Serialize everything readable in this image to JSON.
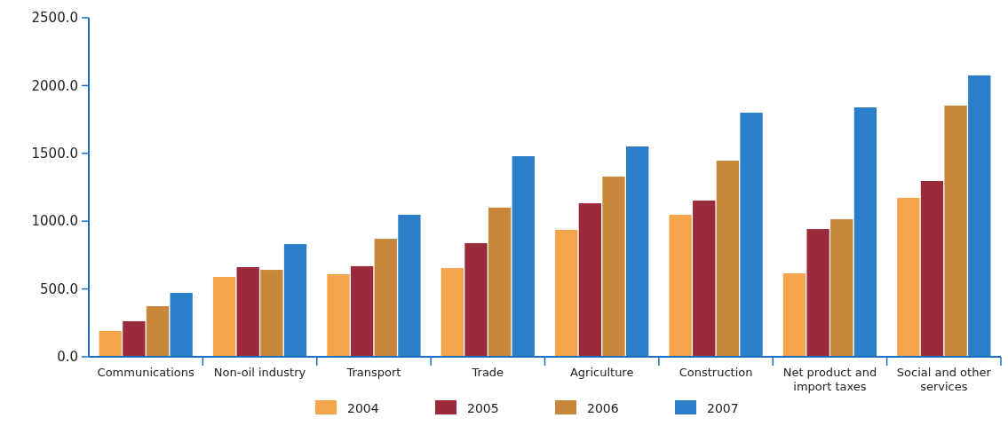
{
  "chart_data": {
    "type": "bar",
    "categories": [
      "Communications",
      "Non-oil industry",
      "Transport",
      "Trade",
      "Agriculture",
      "Construction",
      "Net product and import taxes",
      "Social and other services"
    ],
    "series": [
      {
        "name": "2004",
        "color": "#f5a44a",
        "values": [
          190,
          589,
          609,
          654,
          936,
          1047,
          615,
          1172
        ]
      },
      {
        "name": "2005",
        "color": "#9b2a3a",
        "values": [
          262,
          661,
          668,
          838,
          1132,
          1152,
          942,
          1296
        ]
      },
      {
        "name": "2006",
        "color": "#c8873a",
        "values": [
          373,
          641,
          870,
          1100,
          1329,
          1446,
          1014,
          1852
        ]
      },
      {
        "name": "2007",
        "color": "#2b7fc8",
        "values": [
          471,
          831,
          1047,
          1479,
          1551,
          1800,
          1839,
          2075
        ]
      }
    ],
    "ylim": [
      0,
      2500
    ],
    "yticks": [
      {
        "value": 0,
        "label": "0.0"
      },
      {
        "value": 500,
        "label": "500.0"
      },
      {
        "value": 1000,
        "label": "1000.0"
      },
      {
        "value": 1500,
        "label": "1500.0"
      },
      {
        "value": 2000,
        "label": "2000.0"
      },
      {
        "value": 2500,
        "label": "2500.0"
      }
    ],
    "grid": false,
    "legend": "bottom"
  }
}
